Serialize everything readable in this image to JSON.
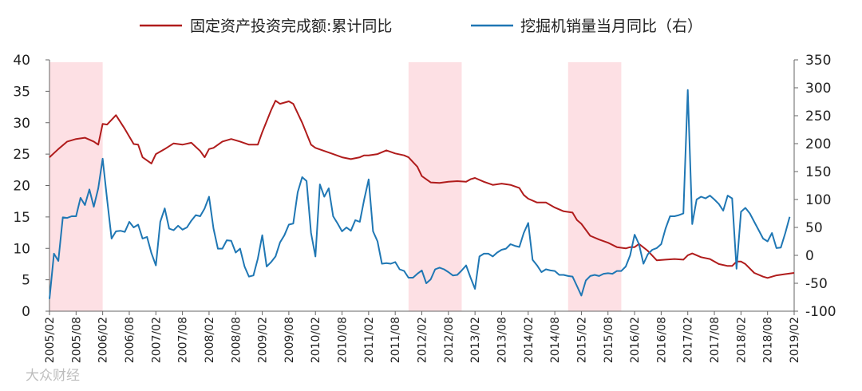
{
  "chart_data": {
    "type": "line",
    "title": "",
    "legend": [
      "固定资产投资完成额:累计同比",
      "挖掘机销量当月同比（右）"
    ],
    "legend_position": "top",
    "colors": {
      "series_left": "#b01c1c",
      "series_right": "#1f77b4",
      "shade": "#fde0e4",
      "axis": "#666666"
    },
    "y_left": {
      "min": 0,
      "max": 40,
      "ticks": [
        "0",
        "5",
        "10",
        "15",
        "20",
        "25",
        "30",
        "35",
        "40"
      ]
    },
    "y_right": {
      "min": -100,
      "max": 350,
      "ticks": [
        "-100",
        "-50",
        "0",
        "50",
        "100",
        "150",
        "200",
        "250",
        "300",
        "350"
      ]
    },
    "x_start": "2005-02",
    "x_end": "2019-02",
    "x_tick_labels": [
      "2005/02",
      "2005/08",
      "2006/02",
      "2006/08",
      "2007/02",
      "2007/08",
      "2008/02",
      "2008/08",
      "2009/02",
      "2009/08",
      "2010/02",
      "2010/08",
      "2011/02",
      "2011/08",
      "2012/02",
      "2012/08",
      "2013/02",
      "2013/08",
      "2014/02",
      "2014/08",
      "2015/02",
      "2015/08",
      "2016/02",
      "2016/08",
      "2017/02",
      "2017/08",
      "2018/02",
      "2018/08",
      "2019/02"
    ],
    "shaded_periods": [
      {
        "start": "2005-02",
        "end": "2006-02"
      },
      {
        "start": "2011-11",
        "end": "2012-11"
      },
      {
        "start": "2014-11",
        "end": "2015-11"
      }
    ],
    "series": [
      {
        "name": "固定资产投资完成额:累计同比",
        "axis": "left",
        "points": [
          [
            "2005-02",
            24.5
          ],
          [
            "2005-04",
            25.8
          ],
          [
            "2005-06",
            27.0
          ],
          [
            "2005-08",
            27.4
          ],
          [
            "2005-10",
            27.6
          ],
          [
            "2005-12",
            27.0
          ],
          [
            "2006-01",
            26.5
          ],
          [
            "2006-02",
            29.8
          ],
          [
            "2006-03",
            29.7
          ],
          [
            "2006-05",
            31.2
          ],
          [
            "2006-07",
            29.0
          ],
          [
            "2006-09",
            26.6
          ],
          [
            "2006-10",
            26.5
          ],
          [
            "2006-11",
            24.5
          ],
          [
            "2007-01",
            23.5
          ],
          [
            "2007-02",
            25.0
          ],
          [
            "2007-04",
            25.8
          ],
          [
            "2007-06",
            26.7
          ],
          [
            "2007-08",
            26.5
          ],
          [
            "2007-10",
            26.8
          ],
          [
            "2007-12",
            25.5
          ],
          [
            "2008-01",
            24.5
          ],
          [
            "2008-02",
            25.8
          ],
          [
            "2008-03",
            26.0
          ],
          [
            "2008-05",
            27.0
          ],
          [
            "2008-07",
            27.4
          ],
          [
            "2008-09",
            27.0
          ],
          [
            "2008-11",
            26.5
          ],
          [
            "2009-01",
            26.5
          ],
          [
            "2009-02",
            28.5
          ],
          [
            "2009-04",
            32.0
          ],
          [
            "2009-05",
            33.5
          ],
          [
            "2009-06",
            33.0
          ],
          [
            "2009-08",
            33.4
          ],
          [
            "2009-09",
            33.0
          ],
          [
            "2009-11",
            30.0
          ],
          [
            "2010-01",
            26.5
          ],
          [
            "2010-02",
            26.0
          ],
          [
            "2010-04",
            25.5
          ],
          [
            "2010-06",
            25.0
          ],
          [
            "2010-08",
            24.5
          ],
          [
            "2010-10",
            24.2
          ],
          [
            "2010-12",
            24.5
          ],
          [
            "2011-01",
            24.8
          ],
          [
            "2011-02",
            24.8
          ],
          [
            "2011-04",
            25.0
          ],
          [
            "2011-06",
            25.6
          ],
          [
            "2011-08",
            25.1
          ],
          [
            "2011-10",
            24.8
          ],
          [
            "2011-11",
            24.5
          ],
          [
            "2012-01",
            23.0
          ],
          [
            "2012-02",
            21.5
          ],
          [
            "2012-04",
            20.5
          ],
          [
            "2012-06",
            20.4
          ],
          [
            "2012-08",
            20.6
          ],
          [
            "2012-10",
            20.7
          ],
          [
            "2012-12",
            20.6
          ],
          [
            "2013-01",
            21.0
          ],
          [
            "2013-02",
            21.2
          ],
          [
            "2013-04",
            20.6
          ],
          [
            "2013-06",
            20.1
          ],
          [
            "2013-08",
            20.3
          ],
          [
            "2013-10",
            20.1
          ],
          [
            "2013-12",
            19.6
          ],
          [
            "2014-01",
            18.5
          ],
          [
            "2014-02",
            17.9
          ],
          [
            "2014-04",
            17.3
          ],
          [
            "2014-06",
            17.3
          ],
          [
            "2014-08",
            16.5
          ],
          [
            "2014-10",
            15.9
          ],
          [
            "2014-12",
            15.7
          ],
          [
            "2015-01",
            14.5
          ],
          [
            "2015-02",
            13.9
          ],
          [
            "2015-04",
            12.0
          ],
          [
            "2015-06",
            11.4
          ],
          [
            "2015-08",
            10.9
          ],
          [
            "2015-10",
            10.2
          ],
          [
            "2015-12",
            10.0
          ],
          [
            "2016-01",
            10.2
          ],
          [
            "2016-02",
            10.2
          ],
          [
            "2016-03",
            10.7
          ],
          [
            "2016-05",
            9.6
          ],
          [
            "2016-07",
            8.1
          ],
          [
            "2016-09",
            8.2
          ],
          [
            "2016-11",
            8.3
          ],
          [
            "2017-01",
            8.2
          ],
          [
            "2017-02",
            8.9
          ],
          [
            "2017-03",
            9.2
          ],
          [
            "2017-05",
            8.6
          ],
          [
            "2017-07",
            8.3
          ],
          [
            "2017-09",
            7.5
          ],
          [
            "2017-11",
            7.2
          ],
          [
            "2017-12",
            7.2
          ],
          [
            "2018-01",
            7.9
          ],
          [
            "2018-02",
            7.9
          ],
          [
            "2018-03",
            7.5
          ],
          [
            "2018-05",
            6.1
          ],
          [
            "2018-07",
            5.5
          ],
          [
            "2018-08",
            5.3
          ],
          [
            "2018-10",
            5.7
          ],
          [
            "2018-12",
            5.9
          ],
          [
            "2019-02",
            6.1
          ]
        ]
      },
      {
        "name": "挖掘机销量当月同比（右）",
        "axis": "right",
        "points": [
          [
            "2005-02",
            -78
          ],
          [
            "2005-03",
            3
          ],
          [
            "2005-04",
            -10
          ],
          [
            "2005-05",
            68
          ],
          [
            "2005-06",
            67
          ],
          [
            "2005-07",
            70
          ],
          [
            "2005-08",
            70
          ],
          [
            "2005-09",
            103
          ],
          [
            "2005-10",
            90
          ],
          [
            "2005-11",
            118
          ],
          [
            "2005-12",
            87
          ],
          [
            "2006-01",
            120
          ],
          [
            "2006-02",
            173
          ],
          [
            "2006-03",
            100
          ],
          [
            "2006-04",
            30
          ],
          [
            "2006-05",
            43
          ],
          [
            "2006-06",
            44
          ],
          [
            "2006-07",
            42
          ],
          [
            "2006-08",
            60
          ],
          [
            "2006-09",
            50
          ],
          [
            "2006-10",
            55
          ],
          [
            "2006-11",
            30
          ],
          [
            "2006-12",
            33
          ],
          [
            "2007-01",
            4
          ],
          [
            "2007-02",
            -18
          ],
          [
            "2007-03",
            60
          ],
          [
            "2007-04",
            84
          ],
          [
            "2007-05",
            48
          ],
          [
            "2007-06",
            45
          ],
          [
            "2007-07",
            53
          ],
          [
            "2007-08",
            46
          ],
          [
            "2007-09",
            50
          ],
          [
            "2007-10",
            62
          ],
          [
            "2007-11",
            72
          ],
          [
            "2007-12",
            70
          ],
          [
            "2008-01",
            84
          ],
          [
            "2008-02",
            105
          ],
          [
            "2008-03",
            48
          ],
          [
            "2008-04",
            12
          ],
          [
            "2008-05",
            12
          ],
          [
            "2008-06",
            27
          ],
          [
            "2008-07",
            26
          ],
          [
            "2008-08",
            5
          ],
          [
            "2008-09",
            12
          ],
          [
            "2008-10",
            -20
          ],
          [
            "2008-11",
            -38
          ],
          [
            "2008-12",
            -36
          ],
          [
            "2009-01",
            -6
          ],
          [
            "2009-02",
            36
          ],
          [
            "2009-03",
            -20
          ],
          [
            "2009-04",
            -12
          ],
          [
            "2009-05",
            -2
          ],
          [
            "2009-06",
            23
          ],
          [
            "2009-07",
            36
          ],
          [
            "2009-08",
            55
          ],
          [
            "2009-09",
            57
          ],
          [
            "2009-10",
            113
          ],
          [
            "2009-11",
            140
          ],
          [
            "2009-12",
            133
          ],
          [
            "2010-01",
            40
          ],
          [
            "2010-02",
            -2
          ],
          [
            "2010-03",
            127
          ],
          [
            "2010-04",
            105
          ],
          [
            "2010-05",
            120
          ],
          [
            "2010-06",
            70
          ],
          [
            "2010-07",
            57
          ],
          [
            "2010-08",
            43
          ],
          [
            "2010-09",
            50
          ],
          [
            "2010-10",
            44
          ],
          [
            "2010-11",
            63
          ],
          [
            "2010-12",
            60
          ],
          [
            "2011-01",
            100
          ],
          [
            "2011-02",
            136
          ],
          [
            "2011-03",
            43
          ],
          [
            "2011-04",
            25
          ],
          [
            "2011-05",
            -15
          ],
          [
            "2011-06",
            -14
          ],
          [
            "2011-07",
            -15
          ],
          [
            "2011-08",
            -12
          ],
          [
            "2011-09",
            -25
          ],
          [
            "2011-10",
            -28
          ],
          [
            "2011-11",
            -40
          ],
          [
            "2011-12",
            -40
          ],
          [
            "2012-01",
            -33
          ],
          [
            "2012-02",
            -27
          ],
          [
            "2012-03",
            -50
          ],
          [
            "2012-04",
            -43
          ],
          [
            "2012-05",
            -25
          ],
          [
            "2012-06",
            -22
          ],
          [
            "2012-07",
            -25
          ],
          [
            "2012-08",
            -30
          ],
          [
            "2012-09",
            -36
          ],
          [
            "2012-10",
            -35
          ],
          [
            "2012-11",
            -27
          ],
          [
            "2012-12",
            -18
          ],
          [
            "2013-01",
            -40
          ],
          [
            "2013-02",
            -60
          ],
          [
            "2013-03",
            -2
          ],
          [
            "2013-04",
            3
          ],
          [
            "2013-05",
            3
          ],
          [
            "2013-06",
            -2
          ],
          [
            "2013-07",
            5
          ],
          [
            "2013-08",
            10
          ],
          [
            "2013-09",
            12
          ],
          [
            "2013-10",
            20
          ],
          [
            "2013-11",
            17
          ],
          [
            "2013-12",
            15
          ],
          [
            "2014-01",
            40
          ],
          [
            "2014-02",
            58
          ],
          [
            "2014-03",
            -8
          ],
          [
            "2014-04",
            -18
          ],
          [
            "2014-05",
            -30
          ],
          [
            "2014-06",
            -25
          ],
          [
            "2014-07",
            -27
          ],
          [
            "2014-08",
            -28
          ],
          [
            "2014-09",
            -35
          ],
          [
            "2014-10",
            -35
          ],
          [
            "2014-11",
            -37
          ],
          [
            "2014-12",
            -38
          ],
          [
            "2015-01",
            -55
          ],
          [
            "2015-02",
            -72
          ],
          [
            "2015-03",
            -45
          ],
          [
            "2015-04",
            -37
          ],
          [
            "2015-05",
            -35
          ],
          [
            "2015-06",
            -37
          ],
          [
            "2015-07",
            -33
          ],
          [
            "2015-08",
            -32
          ],
          [
            "2015-09",
            -33
          ],
          [
            "2015-10",
            -28
          ],
          [
            "2015-11",
            -28
          ],
          [
            "2015-12",
            -20
          ],
          [
            "2016-01",
            0
          ],
          [
            "2016-02",
            37
          ],
          [
            "2016-03",
            20
          ],
          [
            "2016-04",
            -15
          ],
          [
            "2016-05",
            2
          ],
          [
            "2016-06",
            10
          ],
          [
            "2016-07",
            13
          ],
          [
            "2016-08",
            20
          ],
          [
            "2016-09",
            48
          ],
          [
            "2016-10",
            70
          ],
          [
            "2016-11",
            70
          ],
          [
            "2016-12",
            72
          ],
          [
            "2017-01",
            75
          ],
          [
            "2017-02",
            296
          ],
          [
            "2017-03",
            56
          ],
          [
            "2017-04",
            100
          ],
          [
            "2017-05",
            105
          ],
          [
            "2017-06",
            102
          ],
          [
            "2017-07",
            107
          ],
          [
            "2017-08",
            100
          ],
          [
            "2017-09",
            92
          ],
          [
            "2017-10",
            80
          ],
          [
            "2017-11",
            107
          ],
          [
            "2017-12",
            102
          ],
          [
            "2018-01",
            -24
          ],
          [
            "2018-02",
            78
          ],
          [
            "2018-03",
            85
          ],
          [
            "2018-04",
            75
          ],
          [
            "2018-05",
            60
          ],
          [
            "2018-06",
            45
          ],
          [
            "2018-07",
            30
          ],
          [
            "2018-08",
            25
          ],
          [
            "2018-09",
            40
          ],
          [
            "2018-10",
            13
          ],
          [
            "2018-11",
            14
          ],
          [
            "2018-12",
            40
          ],
          [
            "2019-01",
            69
          ]
        ]
      }
    ],
    "xlabel": "",
    "ylabel": ""
  },
  "watermark": "大众财经"
}
